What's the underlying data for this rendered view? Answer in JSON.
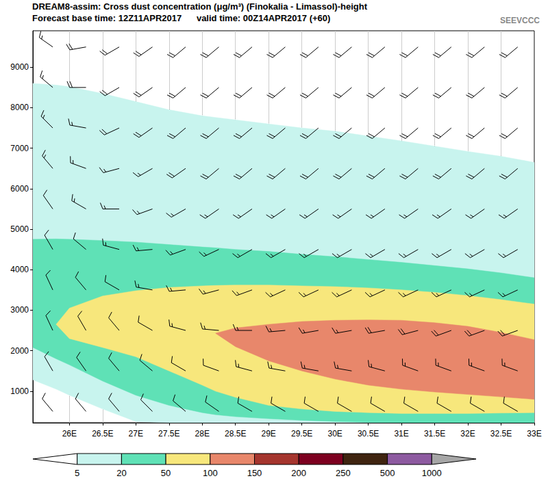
{
  "chart_data": {
    "type": "contourf",
    "title": "DREAM8-assim: Cross dust concentration (μg/m³) (Finokalia - Limassol)-height",
    "subtitle": "Forecast base time: 12Z11APR2017      valid time: 00Z14APR2017 (+60)",
    "logo": "SEEVCCC",
    "xlim": [
      25.45,
      33
    ],
    "xticks": [
      {
        "value": 26,
        "label": "26E"
      },
      {
        "value": 26.5,
        "label": "26.5E"
      },
      {
        "value": 27,
        "label": "27E"
      },
      {
        "value": 27.5,
        "label": "27.5E"
      },
      {
        "value": 28,
        "label": "28E"
      },
      {
        "value": 28.5,
        "label": "28.5E"
      },
      {
        "value": 29,
        "label": "29E"
      },
      {
        "value": 29.5,
        "label": "29.5E"
      },
      {
        "value": 30,
        "label": "30E"
      },
      {
        "value": 30.5,
        "label": "30.5E"
      },
      {
        "value": 31,
        "label": "31E"
      },
      {
        "value": 31.5,
        "label": "31.5E"
      },
      {
        "value": 32,
        "label": "32E"
      },
      {
        "value": 32.5,
        "label": "32.5E"
      },
      {
        "value": 33,
        "label": "33E"
      }
    ],
    "ylim": [
      220,
      9900
    ],
    "yticks": [
      1000,
      2000,
      3000,
      4000,
      5000,
      6000,
      7000,
      8000,
      9000
    ],
    "grid": true,
    "x": [
      25.45,
      25.8,
      26,
      26.5,
      27,
      27.5,
      28,
      28.2,
      28.5,
      29,
      29.5,
      30,
      30.5,
      31,
      31.5,
      32,
      32.5,
      33
    ],
    "levels": [
      {
        "value": 5,
        "top": [
          8600,
          8560,
          8520,
          8350,
          8150,
          7950,
          7800,
          7760,
          7700,
          7600,
          7500,
          7420,
          7300,
          7180,
          7050,
          6920,
          6800,
          6650
        ],
        "bottom": [
          1280,
          1050,
          900,
          560,
          250,
          220,
          220,
          220,
          220,
          220,
          220,
          220,
          220,
          220,
          220,
          220,
          220,
          220
        ]
      },
      {
        "value": 20,
        "top": [
          4750,
          4760,
          4750,
          4720,
          4680,
          4620,
          4560,
          4540,
          4500,
          4450,
          4380,
          4320,
          4250,
          4180,
          4100,
          4020,
          3920,
          3800
        ],
        "bottom": [
          2080,
          1800,
          1650,
          1250,
          900,
          650,
          470,
          420,
          370,
          320,
          280,
          250,
          230,
          220,
          220,
          220,
          220,
          220
        ]
      },
      {
        "value": 50,
        "top": [
          null,
          2650,
          3050,
          3350,
          3480,
          3560,
          3600,
          3610,
          3620,
          3620,
          3600,
          3580,
          3550,
          3500,
          3440,
          3360,
          3260,
          3150
        ],
        "bottom": [
          null,
          2650,
          2300,
          2080,
          1850,
          1500,
          1150,
          1000,
          850,
          650,
          560,
          500,
          470,
          450,
          450,
          450,
          460,
          470
        ]
      },
      {
        "value": 100,
        "top": [
          null,
          null,
          null,
          null,
          null,
          null,
          null,
          2430,
          2560,
          2650,
          2720,
          2750,
          2760,
          2750,
          2690,
          2600,
          2450,
          2270
        ],
        "bottom": [
          null,
          null,
          null,
          null,
          null,
          null,
          null,
          2430,
          2100,
          1750,
          1500,
          1300,
          1150,
          1050,
          980,
          920,
          860,
          800
        ]
      }
    ],
    "colorbar": {
      "ticks": [
        5,
        20,
        50,
        100,
        150,
        200,
        250,
        500,
        1000
      ],
      "colors": [
        "#ffffff",
        "#c8f4ee",
        "#5fe1b6",
        "#f7e77c",
        "#e8876b",
        "#a5352e",
        "#7d0020",
        "#3f2410",
        "#8d5aa0",
        "#a6a6a6"
      ]
    },
    "wind_barbs": {
      "x": [
        25.75,
        26.25,
        26.75,
        27.25,
        27.75,
        28.25,
        28.75,
        29.25,
        29.75,
        30.25,
        30.75,
        31.25,
        31.75,
        32.25,
        32.75
      ],
      "heights": [
        500,
        1500,
        2500,
        3500,
        4500,
        5500,
        6500,
        7500,
        8500,
        9500
      ],
      "direction": [
        [
          320,
          320,
          320,
          315,
          310,
          305,
          300,
          300,
          300,
          300,
          300,
          300,
          300,
          300,
          300
        ],
        [
          330,
          325,
          320,
          310,
          300,
          290,
          285,
          280,
          280,
          280,
          285,
          290,
          290,
          290,
          290
        ],
        [
          335,
          330,
          320,
          300,
          285,
          275,
          270,
          265,
          260,
          260,
          260,
          255,
          250,
          250,
          250
        ],
        [
          335,
          320,
          300,
          280,
          265,
          255,
          250,
          245,
          245,
          245,
          245,
          245,
          245,
          245,
          245
        ],
        [
          330,
          310,
          285,
          265,
          250,
          245,
          240,
          240,
          240,
          240,
          240,
          240,
          240,
          240,
          240
        ],
        [
          325,
          300,
          270,
          250,
          240,
          235,
          235,
          235,
          235,
          235,
          235,
          235,
          235,
          235,
          235
        ],
        [
          320,
          290,
          255,
          240,
          235,
          230,
          230,
          230,
          230,
          230,
          230,
          230,
          230,
          230,
          230
        ],
        [
          315,
          280,
          245,
          235,
          230,
          230,
          230,
          230,
          230,
          230,
          230,
          230,
          230,
          230,
          230
        ],
        [
          310,
          270,
          240,
          235,
          230,
          230,
          230,
          230,
          230,
          230,
          230,
          230,
          230,
          230,
          230
        ],
        [
          305,
          260,
          240,
          235,
          230,
          230,
          230,
          230,
          230,
          230,
          230,
          230,
          230,
          230,
          230
        ]
      ],
      "speed": [
        [
          10,
          10,
          10,
          10,
          10,
          10,
          10,
          10,
          10,
          10,
          10,
          10,
          10,
          10,
          10
        ],
        [
          10,
          10,
          10,
          10,
          10,
          10,
          15,
          15,
          15,
          15,
          15,
          15,
          15,
          15,
          15
        ],
        [
          10,
          10,
          10,
          10,
          15,
          15,
          15,
          15,
          15,
          15,
          20,
          20,
          20,
          20,
          20
        ],
        [
          10,
          10,
          10,
          15,
          15,
          15,
          15,
          15,
          15,
          15,
          15,
          15,
          15,
          15,
          15
        ],
        [
          10,
          10,
          15,
          15,
          15,
          15,
          15,
          15,
          15,
          15,
          15,
          15,
          15,
          15,
          15
        ],
        [
          10,
          15,
          15,
          15,
          15,
          15,
          15,
          15,
          15,
          15,
          15,
          15,
          15,
          15,
          15
        ],
        [
          15,
          15,
          15,
          15,
          20,
          20,
          20,
          20,
          20,
          20,
          20,
          20,
          20,
          20,
          20
        ],
        [
          15,
          15,
          20,
          20,
          20,
          20,
          20,
          20,
          20,
          20,
          20,
          20,
          20,
          20,
          20
        ],
        [
          15,
          20,
          20,
          20,
          20,
          20,
          20,
          20,
          20,
          20,
          20,
          20,
          20,
          20,
          20
        ],
        [
          15,
          20,
          20,
          20,
          20,
          20,
          20,
          20,
          20,
          20,
          20,
          20,
          20,
          20,
          20
        ]
      ]
    }
  }
}
